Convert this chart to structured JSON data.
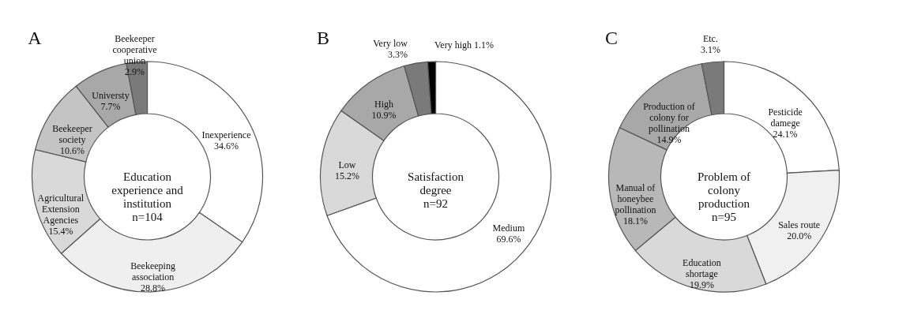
{
  "chart_data": [
    {
      "type": "donut",
      "title": "A",
      "annotations": [
        "Education experience and institution",
        "n=104"
      ],
      "categories": [
        "Inexperience",
        "Beekeeping association",
        "Agricultural Extension Agencies",
        "Beekeeper society",
        "Universty",
        "Beekeeper cooperative union"
      ],
      "values": [
        34.6,
        28.8,
        15.4,
        10.6,
        7.7,
        2.9
      ],
      "value_labels": [
        "34.6%",
        "28.8%",
        "15.4%",
        "10.6%",
        "7.7%",
        "2.9%"
      ],
      "colors": [
        "#ffffff",
        "#efefef",
        "#d9d9d9",
        "#c4c4c4",
        "#a8a8a8",
        "#7a7a7a"
      ]
    },
    {
      "type": "donut",
      "title": "B",
      "annotations": [
        "Satisfaction degree",
        "n=92"
      ],
      "categories": [
        "Medium",
        "Low",
        "High",
        "Very low",
        "Very high"
      ],
      "values": [
        69.6,
        15.2,
        10.9,
        3.3,
        1.1
      ],
      "value_labels": [
        "69.6%",
        "15.2%",
        "10.9%",
        "3.3%",
        "1.1%"
      ],
      "colors": [
        "#ffffff",
        "#d9d9d9",
        "#a8a8a8",
        "#7a7a7a",
        "#000000"
      ]
    },
    {
      "type": "donut",
      "title": "C",
      "annotations": [
        "Problem of colony production",
        "n=95"
      ],
      "categories": [
        "Pesticide damege",
        "Sales route",
        "Education shortage",
        "Manual of honeybee pollination",
        "Production of colony for pollination",
        "Etc."
      ],
      "values": [
        24.1,
        20.0,
        19.9,
        18.1,
        14.9,
        3.1
      ],
      "value_labels": [
        "24.1%",
        "20.0%",
        "19.9%",
        "18.1%",
        "14.9%",
        "3.1%"
      ],
      "colors": [
        "#ffffff",
        "#f0f0f0",
        "#d9d9d9",
        "#b8b8b8",
        "#a8a8a8",
        "#7a7a7a"
      ]
    }
  ]
}
